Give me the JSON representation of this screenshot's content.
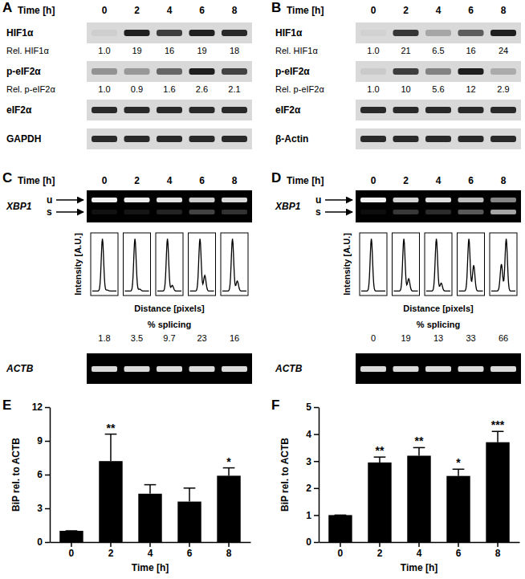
{
  "chart_data": [
    {
      "type": "blot",
      "title": "A",
      "header": "Time [h]",
      "categories": [
        "0",
        "2",
        "4",
        "6",
        "8"
      ],
      "bands": [
        {
          "name": "HIF1α",
          "value_name": "Rel. HIF1α",
          "values": [
            1.0,
            19,
            16,
            19,
            18
          ],
          "value_labels": [
            "1.0",
            "19",
            "16",
            "19",
            "18"
          ]
        },
        {
          "name": "p-eIF2α",
          "value_name": "Rel. p-eIF2α",
          "values": [
            1.0,
            0.9,
            1.6,
            2.6,
            2.1
          ],
          "value_labels": [
            "1.0",
            "0.9",
            "1.6",
            "2.6",
            "2.1"
          ]
        },
        {
          "name": "eIF2α"
        },
        {
          "name": "GAPDH"
        }
      ]
    },
    {
      "type": "blot",
      "title": "B",
      "header": "Time [h]",
      "categories": [
        "0",
        "2",
        "4",
        "6",
        "8"
      ],
      "bands": [
        {
          "name": "HIF1α",
          "value_name": "Rel. HIF1α",
          "values": [
            1.0,
            21,
            6.5,
            16,
            24
          ],
          "value_labels": [
            "1.0",
            "21",
            "6.5",
            "16",
            "24"
          ]
        },
        {
          "name": "p-eIF2α",
          "value_name": "Rel. p-eIF2α",
          "values": [
            1.0,
            10,
            5.6,
            12,
            2.9
          ],
          "value_labels": [
            "1.0",
            "10",
            "5.6",
            "12",
            "2.9"
          ]
        },
        {
          "name": "eIF2α"
        },
        {
          "name": "β-Actin"
        }
      ]
    },
    {
      "type": "gel",
      "title": "C",
      "header": "Time [h]",
      "categories": [
        "0",
        "2",
        "4",
        "6",
        "8"
      ],
      "gel_label": "XBP1",
      "band_labels": [
        "u",
        "s"
      ],
      "y_label": "Intensity [A.U.]",
      "x_label": "Distance [pixels]",
      "value_name": "% splicing",
      "values": [
        1.8,
        3.5,
        9.7,
        23,
        16
      ],
      "control_label": "ACTB"
    },
    {
      "type": "gel",
      "title": "D",
      "header": "Time [h]",
      "categories": [
        "0",
        "2",
        "4",
        "6",
        "8"
      ],
      "gel_label": "XBP1",
      "band_labels": [
        "u",
        "s"
      ],
      "y_label": "Intensity [A.U.]",
      "x_label": "Distance [pixels]",
      "value_name": "% splicing",
      "values": [
        0,
        19,
        13,
        33,
        66
      ],
      "control_label": "ACTB"
    },
    {
      "type": "bar",
      "title": "E",
      "categories": [
        "0",
        "2",
        "4",
        "6",
        "8"
      ],
      "values": [
        1,
        7.2,
        4.3,
        3.6,
        5.9
      ],
      "errors": [
        0,
        2.4,
        0.8,
        1.2,
        0.7
      ],
      "significance": [
        null,
        "**",
        null,
        null,
        "*"
      ],
      "x_label": "Time [h]",
      "y_label": "BiP rel. to ACTB",
      "ylim": [
        0,
        12
      ],
      "yticks": [
        0,
        3,
        6,
        9,
        12
      ],
      "color": "#000000"
    },
    {
      "type": "bar",
      "title": "F",
      "categories": [
        "0",
        "2",
        "4",
        "6",
        "8"
      ],
      "values": [
        1,
        2.95,
        3.2,
        2.45,
        3.7
      ],
      "errors": [
        0,
        0.2,
        0.3,
        0.25,
        0.4
      ],
      "significance": [
        null,
        "**",
        "**",
        "*",
        "***"
      ],
      "x_label": "Time [h]",
      "y_label": "BiP rel. to ACTB",
      "ylim": [
        0,
        5
      ],
      "yticks": [
        0,
        1,
        2,
        3,
        4,
        5
      ],
      "color": "#000000"
    }
  ]
}
